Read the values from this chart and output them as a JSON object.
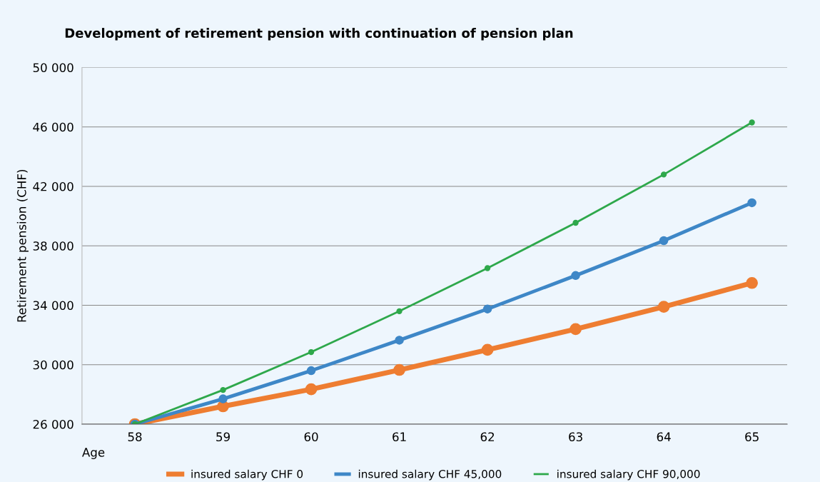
{
  "chart_data": {
    "type": "line",
    "title": "Development of retirement pension with continuation of pension plan",
    "xlabel": "Age",
    "ylabel": "Retirement pension (CHF)",
    "categories": [
      "58",
      "59",
      "60",
      "61",
      "62",
      "63",
      "64",
      "65"
    ],
    "series": [
      {
        "name": "insured salary CHF 0",
        "color": "#ee7d31",
        "values": [
          26000,
          27200,
          28350,
          29650,
          31000,
          32400,
          33900,
          35500
        ]
      },
      {
        "name": "insured salary CHF 45,000",
        "color": "#3e87c7",
        "values": [
          26000,
          27700,
          29600,
          31650,
          33750,
          36000,
          38350,
          40900
        ]
      },
      {
        "name": "insured salary CHF 90,000",
        "color": "#2ea84b",
        "values": [
          26000,
          28300,
          30850,
          33600,
          36500,
          39550,
          42800,
          46300
        ]
      }
    ],
    "ylim": [
      26000,
      50000
    ],
    "yticks": [
      {
        "value": 26000,
        "label": "26 000"
      },
      {
        "value": 30000,
        "label": "30 000"
      },
      {
        "value": 34000,
        "label": "34 000"
      },
      {
        "value": 38000,
        "label": "38 000"
      },
      {
        "value": 42000,
        "label": "42 000"
      },
      {
        "value": 46000,
        "label": "46 000"
      },
      {
        "value": 50000,
        "label": "50 000"
      }
    ],
    "grid": "y",
    "legend": "bottom",
    "marker": "circle",
    "line_style": "solid"
  }
}
